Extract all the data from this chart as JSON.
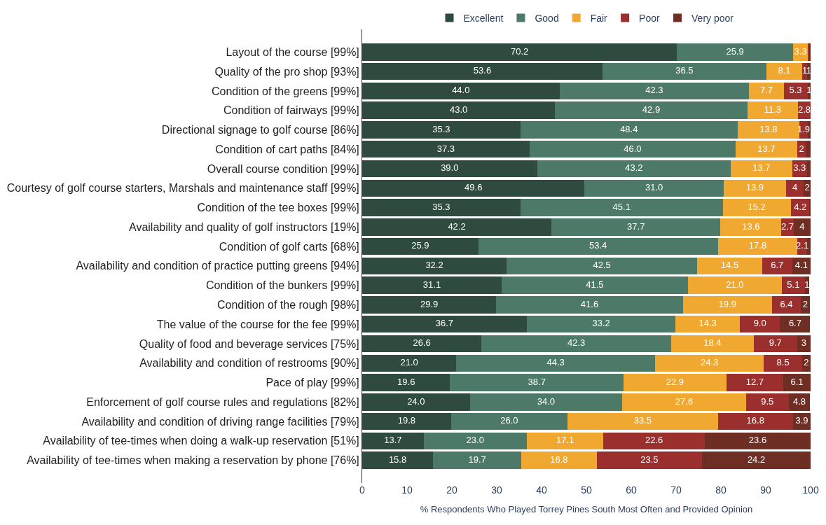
{
  "chart_data": {
    "type": "bar",
    "orientation": "horizontal",
    "stacked": true,
    "xlabel": "% Respondents Who Played Torrey Pines South Most Often and Provided Opinion",
    "categories": [
      "Layout of the course [99%]",
      "Quality of the pro shop [93%]",
      "Condition of the greens [99%]",
      "Condition of fairways [99%]",
      "Directional signage to golf course [86%]",
      "Condition of cart paths [84%]",
      "Overall course condition [99%]",
      "Courtesy of golf course starters, Marshals and maintenance staff [99%]",
      "Condition of the tee boxes [99%]",
      "Availability and quality of golf instructors [19%]",
      "Condition of golf carts [68%]",
      "Availability and condition of practice putting greens [94%]",
      "Condition of the bunkers [99%]",
      "Condition of the rough [98%]",
      "The value of the course for the fee [99%]",
      "Quality of food and beverage services [75%]",
      "Availability and condition of restrooms [90%]",
      "Pace of play [99%]",
      "Enforcement of golf course rules and regulations [82%]",
      "Availability and condition of driving range facilities [79%]",
      "Availability of tee-times when doing a walk-up reservation [51%]",
      "Availability of tee-times when making a reservation by phone [76%]"
    ],
    "series": [
      {
        "name": "Excellent",
        "color": "#2f4a3e",
        "values": [
          70.2,
          53.6,
          44.0,
          43.0,
          35.3,
          37.3,
          39.0,
          49.6,
          35.3,
          42.2,
          25.9,
          32.2,
          31.1,
          29.9,
          36.7,
          26.6,
          21.0,
          19.6,
          24.0,
          19.8,
          13.7,
          15.8
        ],
        "value_labels": [
          "70.2",
          "53.6",
          "44.0",
          "43.0",
          "35.3",
          "37.3",
          "39.0",
          "49.6",
          "35.3",
          "42.2",
          "25.9",
          "32.2",
          "31.1",
          "29.9",
          "36.7",
          "26.6",
          "21.0",
          "19.6",
          "24.0",
          "19.8",
          "13.7",
          "15.8"
        ]
      },
      {
        "name": "Good",
        "color": "#4d7a68",
        "values": [
          25.9,
          36.5,
          42.3,
          42.9,
          48.4,
          46.0,
          43.2,
          31.0,
          45.1,
          37.7,
          53.4,
          42.5,
          41.5,
          41.6,
          33.2,
          42.3,
          44.3,
          38.7,
          34.0,
          26.0,
          23.0,
          19.7
        ],
        "value_labels": [
          "25.9",
          "36.5",
          "42.3",
          "42.9",
          "48.4",
          "46.0",
          "43.2",
          "31.0",
          "45.1",
          "37.7",
          "53.4",
          "42.5",
          "41.5",
          "41.6",
          "33.2",
          "42.3",
          "44.3",
          "38.7",
          "34.0",
          "26.0",
          "23.0",
          "19.7"
        ]
      },
      {
        "name": "Fair",
        "color": "#f0a830",
        "values": [
          3.3,
          8.1,
          7.7,
          11.3,
          13.8,
          13.7,
          13.7,
          13.9,
          15.2,
          13.6,
          17.8,
          14.5,
          21.0,
          19.9,
          14.3,
          18.4,
          24.3,
          22.9,
          27.6,
          33.5,
          17.1,
          16.8
        ],
        "value_labels": [
          "3.3",
          "8.1",
          "7.7",
          "11.3",
          "13.8",
          "13.7",
          "13.7",
          "13.9",
          "15.2",
          "13.6",
          "17.8",
          "14.5",
          "21.0",
          "19.9",
          "14.3",
          "18.4",
          "24.3",
          "22.9",
          "27.6",
          "33.5",
          "17.1",
          "16.8"
        ]
      },
      {
        "name": "Poor",
        "color": "#9b2f2e",
        "values": [
          0.4,
          1.0,
          5.3,
          2.8,
          1.9,
          2.0,
          3.3,
          4.0,
          4.2,
          2.7,
          2.1,
          6.7,
          5.1,
          6.4,
          9.0,
          9.7,
          8.5,
          12.7,
          9.5,
          16.8,
          22.6,
          23.5
        ],
        "value_labels": [
          null,
          "1",
          "5.3",
          "2.8",
          "1.9",
          "2",
          "3.3",
          "4",
          "4.2",
          "2.7",
          "2.1",
          "6.7",
          "5.1",
          "6.4",
          "9.0",
          "9.7",
          "8.5",
          "12.7",
          "9.5",
          "16.8",
          "22.6",
          "23.5"
        ]
      },
      {
        "name": "Very poor",
        "color": "#6e2e24",
        "values": [
          0.2,
          0.8,
          0.7,
          null,
          0.6,
          1.0,
          0.8,
          1.5,
          0.2,
          3.8,
          0.8,
          4.1,
          1.0,
          2.0,
          6.7,
          3.0,
          1.9,
          6.1,
          4.8,
          3.9,
          23.6,
          24.2
        ],
        "value_labels": [
          null,
          "1",
          "1",
          null,
          null,
          null,
          null,
          "2",
          null,
          "4",
          null,
          "4.1",
          "1",
          "2",
          "6.7",
          "3",
          "2",
          "6.1",
          "4.8",
          "3.9",
          "23.6",
          "24.2"
        ]
      }
    ],
    "xlim": [
      0,
      100
    ],
    "xticks": [
      0,
      10,
      20,
      30,
      40,
      50,
      60,
      70,
      80,
      90,
      100
    ],
    "legend": "top"
  }
}
